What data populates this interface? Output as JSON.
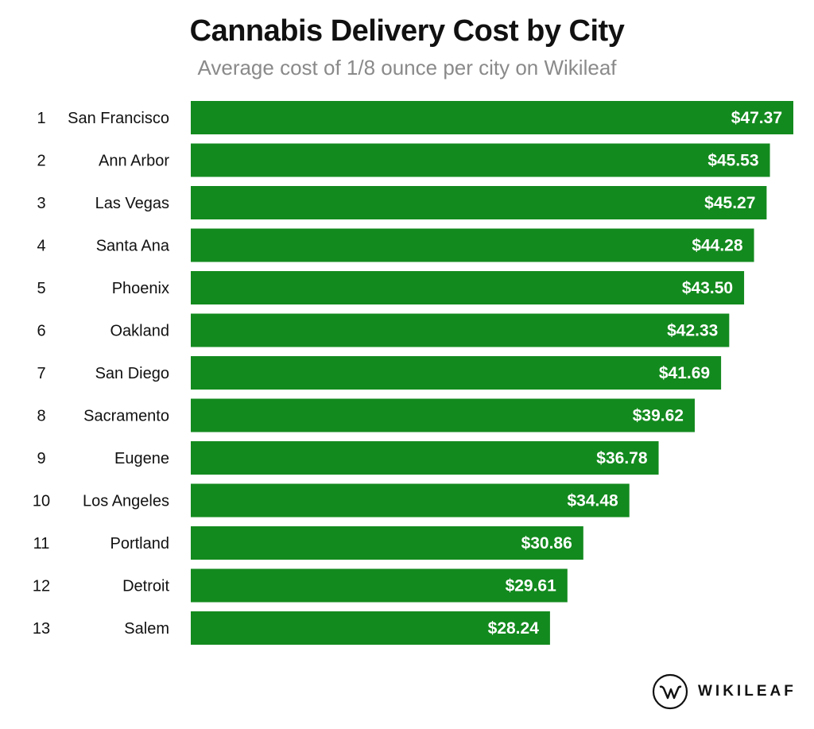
{
  "chart_data": {
    "type": "bar",
    "orientation": "horizontal",
    "title": "Cannabis Delivery Cost by City",
    "subtitle": "Average cost of 1/8 ounce per city on Wikileaf",
    "ranks": [
      "1",
      "2",
      "3",
      "4",
      "5",
      "6",
      "7",
      "8",
      "9",
      "10",
      "11",
      "12",
      "13"
    ],
    "categories": [
      "San Francisco",
      "Ann Arbor",
      "Las Vegas",
      "Santa Ana",
      "Phoenix",
      "Oakland",
      "San Diego",
      "Sacramento",
      "Eugene",
      "Los Angeles",
      "Portland",
      "Detroit",
      "Salem"
    ],
    "values": [
      47.37,
      45.53,
      45.27,
      44.28,
      43.5,
      42.33,
      41.69,
      39.62,
      36.78,
      34.48,
      30.86,
      29.61,
      28.24
    ],
    "data_labels": [
      "$47.37",
      "$45.53",
      "$45.27",
      "$44.28",
      "$43.50",
      "$42.33",
      "$41.69",
      "$39.62",
      "$36.78",
      "$34.48",
      "$30.86",
      "$29.61",
      "$28.24"
    ],
    "xlim": [
      0,
      47.37
    ],
    "grid": false,
    "bar_color": "#138a1e",
    "label_color": "#ffffff"
  },
  "logo": {
    "text": "WIKILEAF",
    "icon": "wikileaf-w-circle-icon"
  }
}
